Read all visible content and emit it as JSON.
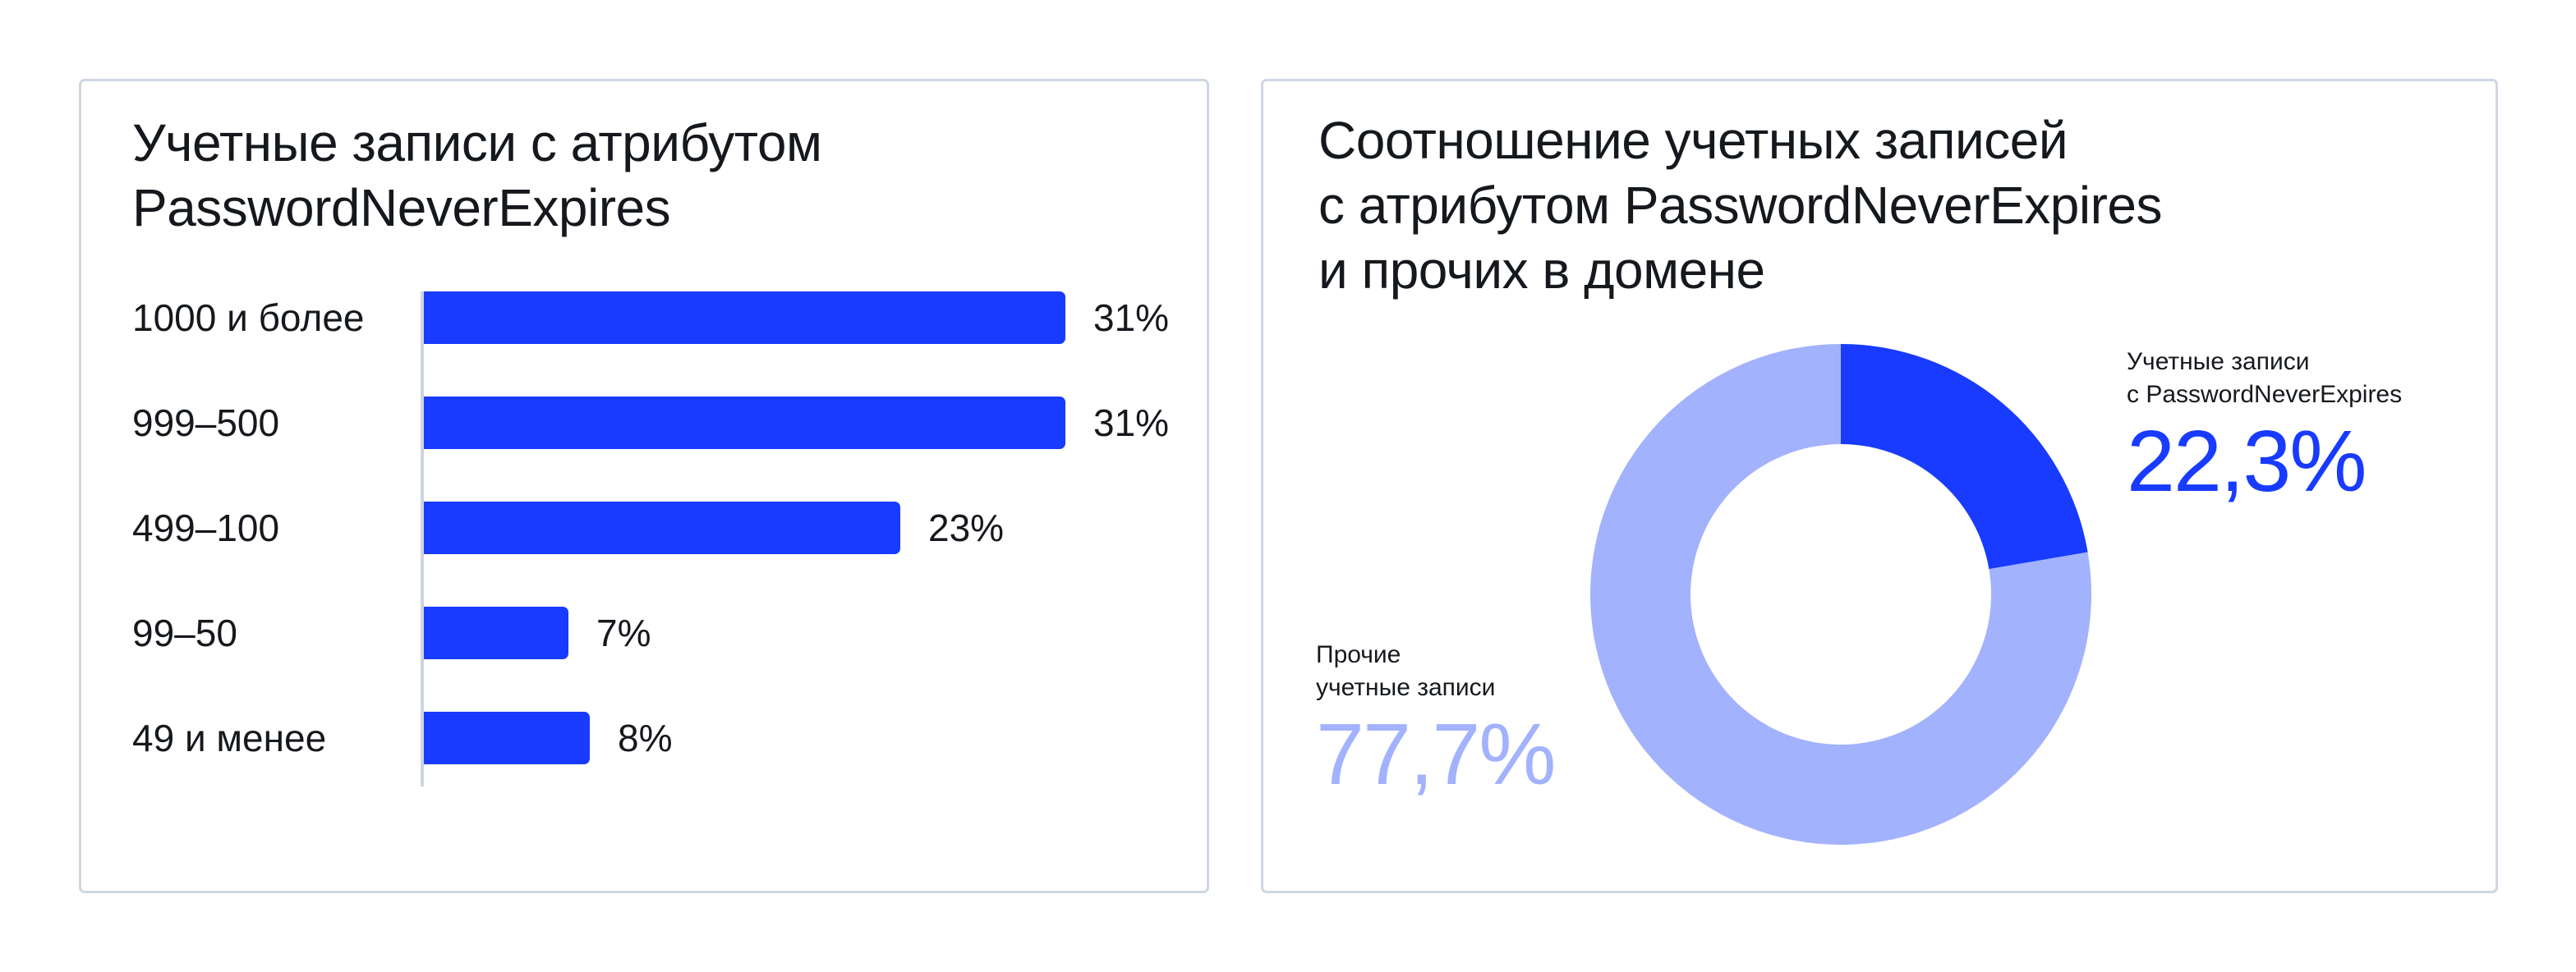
{
  "left_card": {
    "title": "Учетные записи с атрибутом\nPasswordNeverExpires"
  },
  "right_card": {
    "title": "Соотношение учетных записей\nс атрибутом PasswordNeverExpires\nи прочих в домене",
    "legend": {
      "pne": {
        "caption": "Учетные записи\nс PasswordNeverExpires",
        "value": "22,3%"
      },
      "other": {
        "caption": "Прочие\nучетные записи",
        "value": "77,7%"
      }
    }
  },
  "colors": {
    "primary": "#183bff",
    "secondary": "#a3b2fd",
    "text": "#15181d",
    "border": "#cfd6e3"
  },
  "chart_data": [
    {
      "type": "bar",
      "orientation": "horizontal",
      "title": "Учетные записи с атрибутом PasswordNeverExpires",
      "categories": [
        "1000 и более",
        "999–500",
        "499–100",
        "99–50",
        "49 и менее"
      ],
      "values": [
        31,
        31,
        23,
        7,
        8
      ],
      "value_labels": [
        "31%",
        "31%",
        "23%",
        "7%",
        "8%"
      ],
      "unit": "%",
      "xlabel": "",
      "ylabel": "",
      "grid": false,
      "legend": null,
      "color": "#183bff"
    },
    {
      "type": "pie",
      "subtype": "donut",
      "title": "Соотношение учетных записей с атрибутом PasswordNeverExpires и прочих в домене",
      "categories": [
        "Учетные записи с PasswordNeverExpires",
        "Прочие учетные записи"
      ],
      "values": [
        22.3,
        77.7
      ],
      "value_labels": [
        "22,3%",
        "77,7%"
      ],
      "colors": [
        "#183bff",
        "#a3b2fd"
      ],
      "start_angle": "12 o'clock, clockwise",
      "legend_position": "annotations beside chart"
    }
  ]
}
